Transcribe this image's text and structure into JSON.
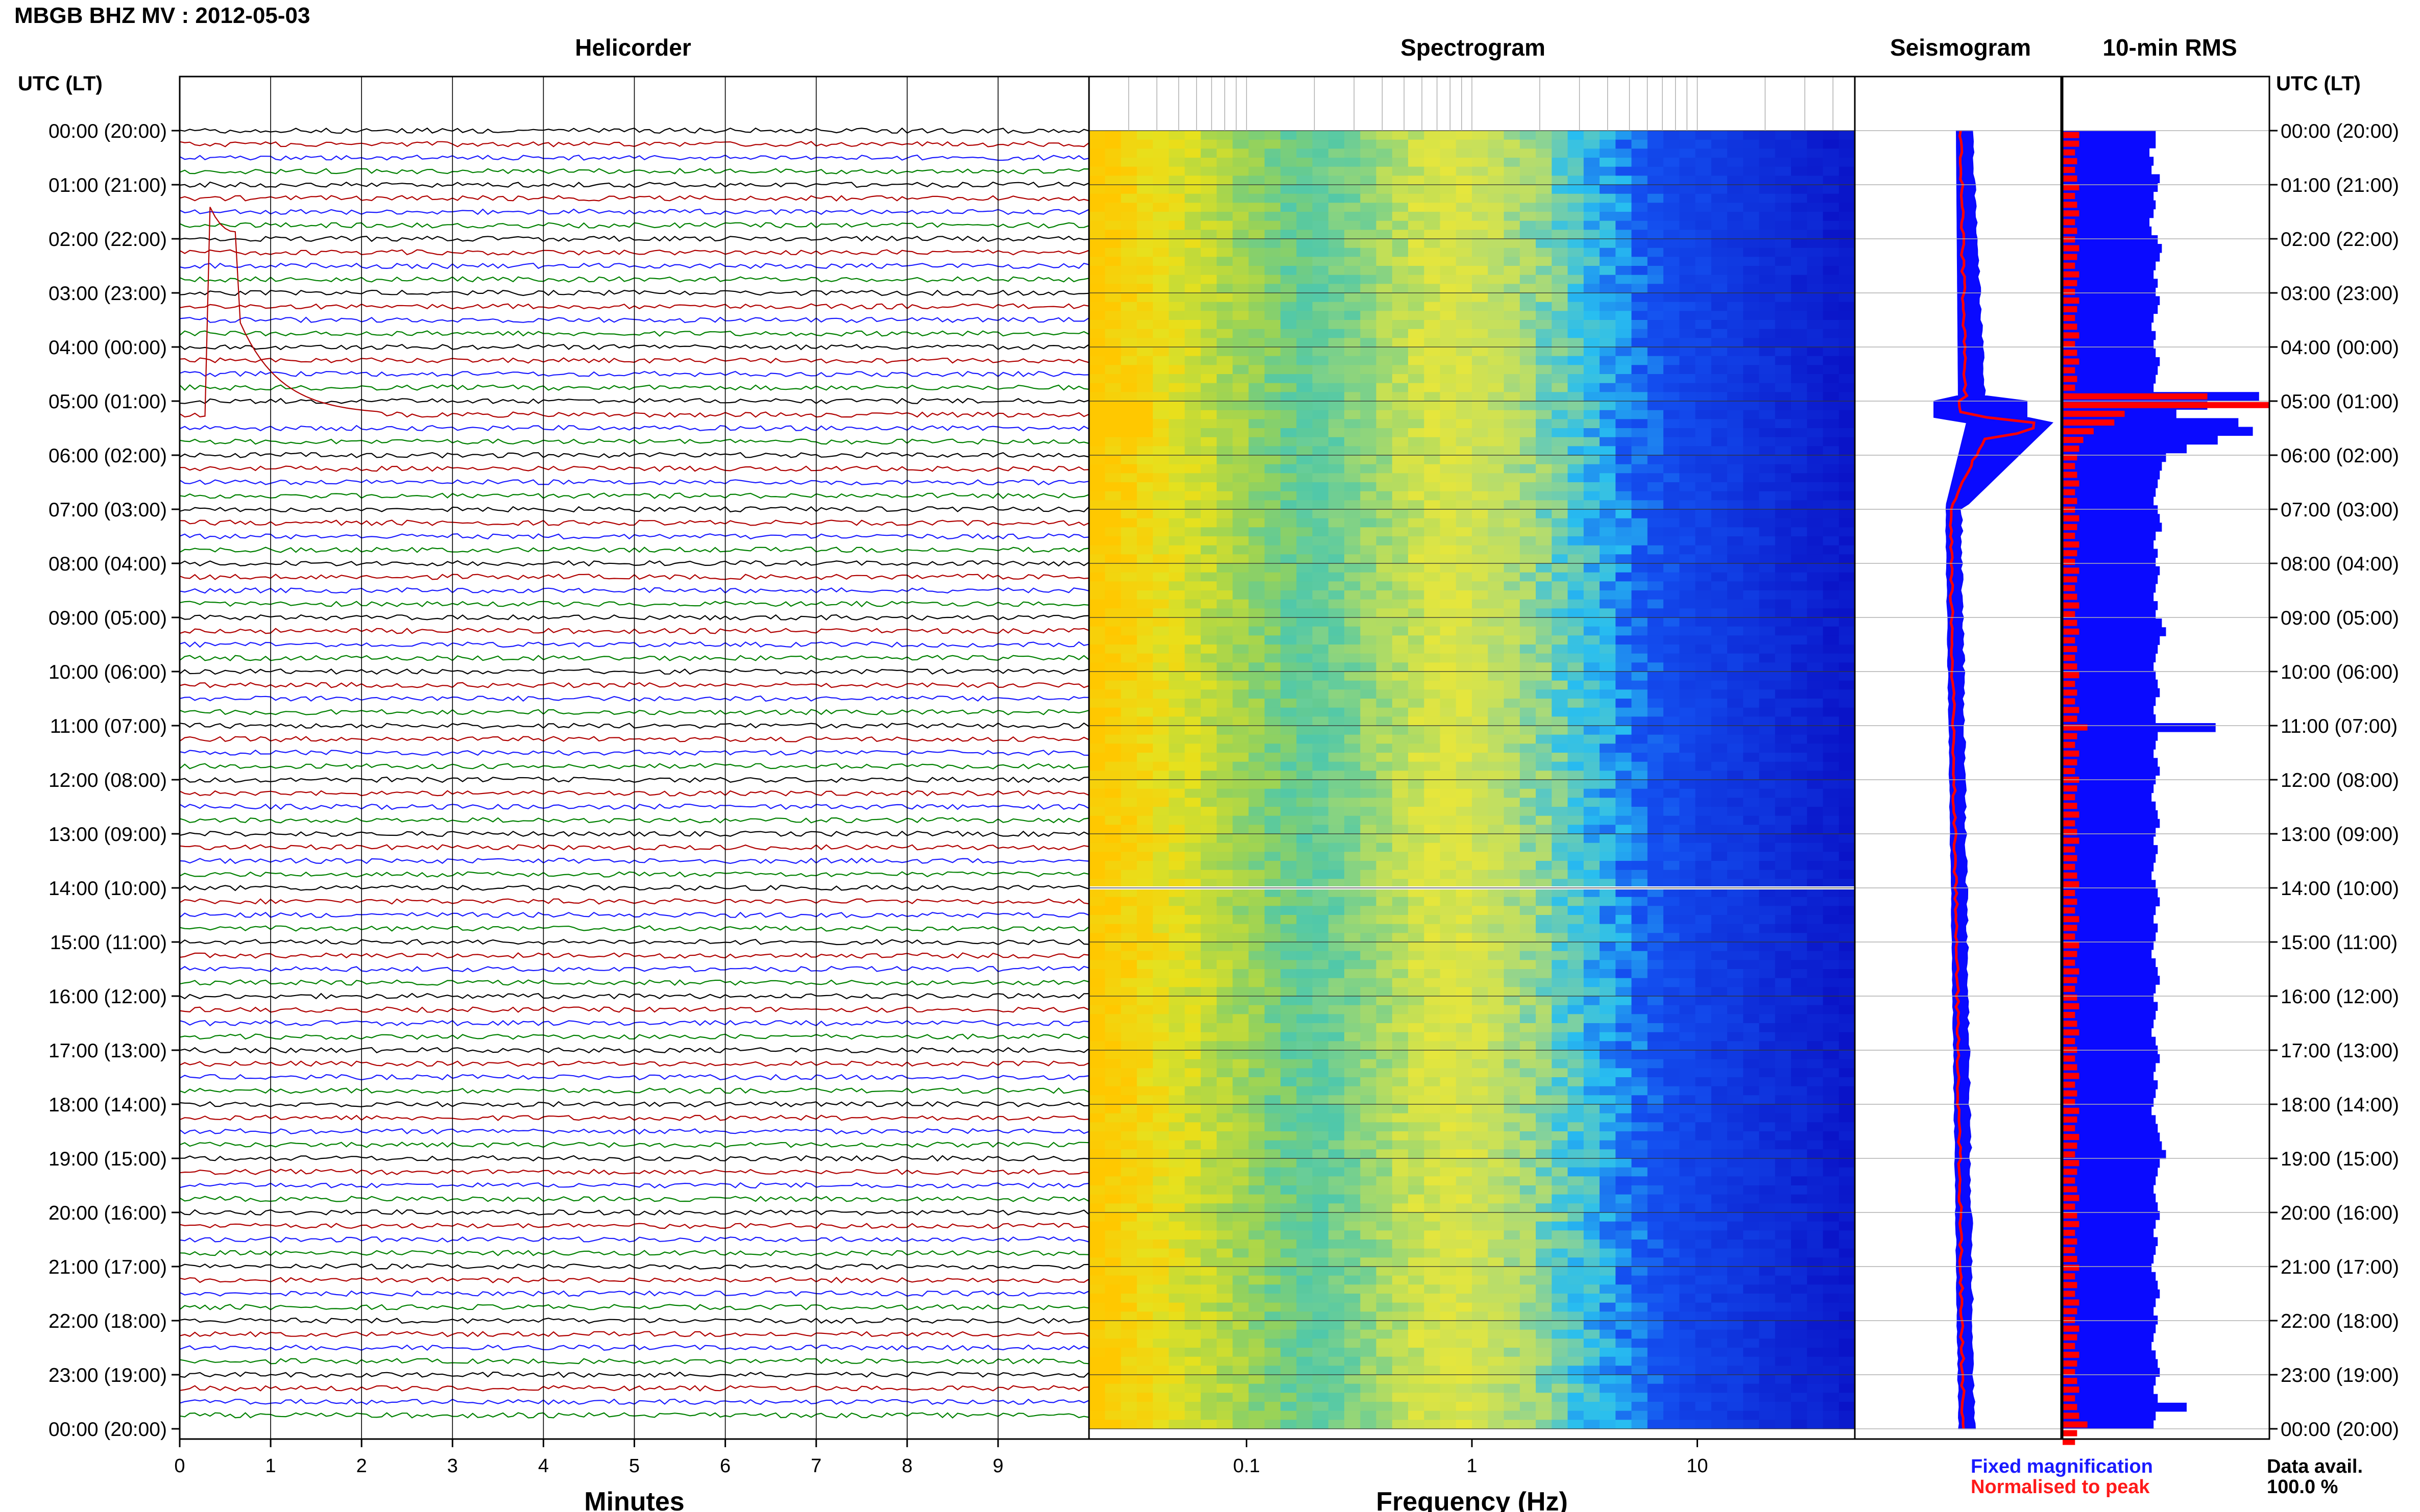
{
  "title": "MBGB BHZ MV : 2012-05-03",
  "panels": {
    "helicorder": "Helicorder",
    "spectrogram": "Spectrogram",
    "seismogram": "Seismogram",
    "rms": "10-min RMS"
  },
  "time_axis_label_left": "UTC (LT)",
  "time_axis_label_right": "UTC (LT)",
  "hour_labels": [
    "00:00 (20:00)",
    "01:00 (21:00)",
    "02:00 (22:00)",
    "03:00 (23:00)",
    "04:00 (00:00)",
    "05:00 (01:00)",
    "06:00 (02:00)",
    "07:00 (03:00)",
    "08:00 (04:00)",
    "09:00 (05:00)",
    "10:00 (06:00)",
    "11:00 (07:00)",
    "12:00 (08:00)",
    "13:00 (09:00)",
    "14:00 (10:00)",
    "15:00 (11:00)",
    "16:00 (12:00)",
    "17:00 (13:00)",
    "18:00 (14:00)",
    "19:00 (15:00)",
    "20:00 (16:00)",
    "21:00 (17:00)",
    "22:00 (18:00)",
    "23:00 (19:00)",
    "00:00 (20:00)"
  ],
  "minutes_axis": {
    "label": "Minutes",
    "ticks": [
      "0",
      "1",
      "2",
      "3",
      "4",
      "5",
      "6",
      "7",
      "8",
      "9"
    ]
  },
  "frequency_axis": {
    "label": "Frequency (Hz)",
    "ticks": [
      "0.1",
      "1",
      "10"
    ]
  },
  "legend": {
    "fixed": "Fixed magnification",
    "normalised": "Normalised to peak"
  },
  "data_avail": {
    "label": "Data avail.",
    "value": "100.0 %"
  },
  "colors": {
    "trace_cycle": [
      "#000000",
      "#b00000",
      "#1a1aff",
      "#008000"
    ],
    "fixed": "#0a0aff",
    "normalised": "#ff0000",
    "grid": "#999999"
  },
  "chart_data": {
    "type": "heatmap",
    "description_elements": [
      "helicorder",
      "spectrogram",
      "seismogram",
      "rms"
    ],
    "rms_fixed": [
      0.45,
      0.45,
      0.42,
      0.44,
      0.43,
      0.47,
      0.46,
      0.44,
      0.45,
      0.44,
      0.42,
      0.43,
      0.46,
      0.48,
      0.47,
      0.45,
      0.44,
      0.46,
      0.45,
      0.47,
      0.46,
      0.44,
      0.43,
      0.45,
      0.44,
      0.45,
      0.47,
      0.46,
      0.45,
      0.44,
      0.95,
      0.7,
      0.55,
      0.85,
      0.92,
      0.75,
      0.6,
      0.5,
      0.48,
      0.47,
      0.46,
      0.45,
      0.44,
      0.46,
      0.47,
      0.48,
      0.45,
      0.44,
      0.46,
      0.45,
      0.47,
      0.46,
      0.45,
      0.44,
      0.46,
      0.45,
      0.48,
      0.5,
      0.47,
      0.46,
      0.45,
      0.44,
      0.45,
      0.46,
      0.47,
      0.45,
      0.44,
      0.45,
      0.74,
      0.46,
      0.45,
      0.44,
      0.46,
      0.47,
      0.45,
      0.44,
      0.43,
      0.45,
      0.46,
      0.47,
      0.45,
      0.44,
      0.46,
      0.45,
      0.44,
      0.43,
      0.45,
      0.46,
      0.47,
      0.45,
      0.44,
      0.46,
      0.45,
      0.44,
      0.43,
      0.45,
      0.46,
      0.47,
      0.45,
      0.44,
      0.46,
      0.45,
      0.44,
      0.43,
      0.45,
      0.46,
      0.47,
      0.45,
      0.44,
      0.46,
      0.45,
      0.44,
      0.43,
      0.45,
      0.46,
      0.47,
      0.48,
      0.5,
      0.47,
      0.46,
      0.45,
      0.44,
      0.45,
      0.46,
      0.47,
      0.45,
      0.44,
      0.46,
      0.45,
      0.44,
      0.43,
      0.45,
      0.46,
      0.47,
      0.45,
      0.44,
      0.46,
      0.45,
      0.44,
      0.43,
      0.45,
      0.46,
      0.47,
      0.45,
      0.44,
      0.46,
      0.6,
      0.45,
      0.44
    ],
    "rms_norm": [
      0.08,
      0.08,
      0.06,
      0.07,
      0.06,
      0.07,
      0.08,
      0.06,
      0.07,
      0.08,
      0.06,
      0.07,
      0.06,
      0.08,
      0.07,
      0.06,
      0.08,
      0.07,
      0.06,
      0.08,
      0.07,
      0.06,
      0.07,
      0.08,
      0.06,
      0.07,
      0.08,
      0.06,
      0.07,
      0.06,
      0.7,
      1.0,
      0.3,
      0.25,
      0.15,
      0.1,
      0.08,
      0.07,
      0.06,
      0.07,
      0.08,
      0.06,
      0.07,
      0.06,
      0.08,
      0.07,
      0.06,
      0.08,
      0.07,
      0.06,
      0.08,
      0.07,
      0.06,
      0.07,
      0.08,
      0.06,
      0.07,
      0.08,
      0.06,
      0.07,
      0.06,
      0.07,
      0.08,
      0.06,
      0.07,
      0.06,
      0.08,
      0.07,
      0.12,
      0.07,
      0.06,
      0.08,
      0.07,
      0.06,
      0.08,
      0.07,
      0.06,
      0.07,
      0.08,
      0.06,
      0.07,
      0.08,
      0.06,
      0.07,
      0.06,
      0.07,
      0.08,
      0.06,
      0.07,
      0.06,
      0.08,
      0.07,
      0.06,
      0.08,
      0.07,
      0.06,
      0.08,
      0.07,
      0.06,
      0.07,
      0.08,
      0.06,
      0.07,
      0.08,
      0.06,
      0.07,
      0.06,
      0.07,
      0.08,
      0.06,
      0.07,
      0.06,
      0.08,
      0.07,
      0.06,
      0.08,
      0.07,
      0.06,
      0.08,
      0.07,
      0.06,
      0.07,
      0.08,
      0.06,
      0.07,
      0.08,
      0.06,
      0.07,
      0.06,
      0.07,
      0.08,
      0.06,
      0.07,
      0.06,
      0.08,
      0.07,
      0.06,
      0.08,
      0.07,
      0.06,
      0.08,
      0.07,
      0.06,
      0.07,
      0.08,
      0.06,
      0.07,
      0.08,
      0.12,
      0.07,
      0.06
    ]
  }
}
